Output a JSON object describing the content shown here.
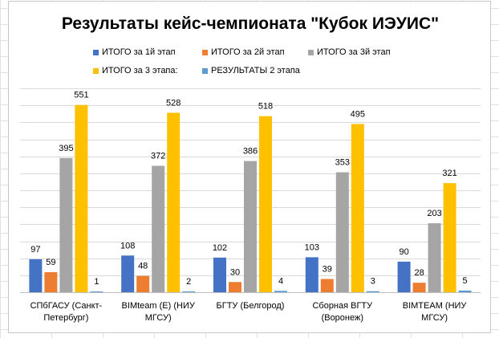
{
  "colors": {
    "series1": "#4472C4",
    "series2": "#ED7D31",
    "series3": "#A5A5A5",
    "series4": "#FFC000",
    "series5": "#5B9BD5",
    "gridline": "#d9d9d9",
    "axis": "#bfbfbf"
  },
  "chart_data": {
    "type": "bar",
    "title": "Результаты кейс-чемпионата \"Кубок ИЭУИС\"",
    "xlabel": "",
    "ylabel": "",
    "ylim": [
      0,
      600
    ],
    "grid": true,
    "legend_position": "top",
    "categories": [
      [
        "СПбГАСУ (Санкт-",
        "Петербург)"
      ],
      [
        "BIMteam (Е) (НИУ",
        "МГСУ)"
      ],
      [
        "БГТУ (Белгород)"
      ],
      [
        "Сборная ВГТУ",
        "(Воронеж)"
      ],
      [
        "BIMTEAM  (НИУ",
        "МГСУ)"
      ]
    ],
    "series": [
      {
        "name": "ИТОГО за 1й этап",
        "values": [
          97,
          108,
          102,
          103,
          90
        ]
      },
      {
        "name": "ИТОГО за 2й этап",
        "values": [
          59,
          48,
          30,
          39,
          28
        ]
      },
      {
        "name": "ИТОГО за 3й этап",
        "values": [
          395,
          372,
          386,
          353,
          203
        ]
      },
      {
        "name": "ИТОГО за 3 этапа:",
        "values": [
          551,
          528,
          518,
          495,
          321
        ]
      },
      {
        "name": "РЕЗУЛЬТАТЫ  2 этапа",
        "values": [
          1,
          2,
          4,
          3,
          5
        ]
      }
    ]
  }
}
